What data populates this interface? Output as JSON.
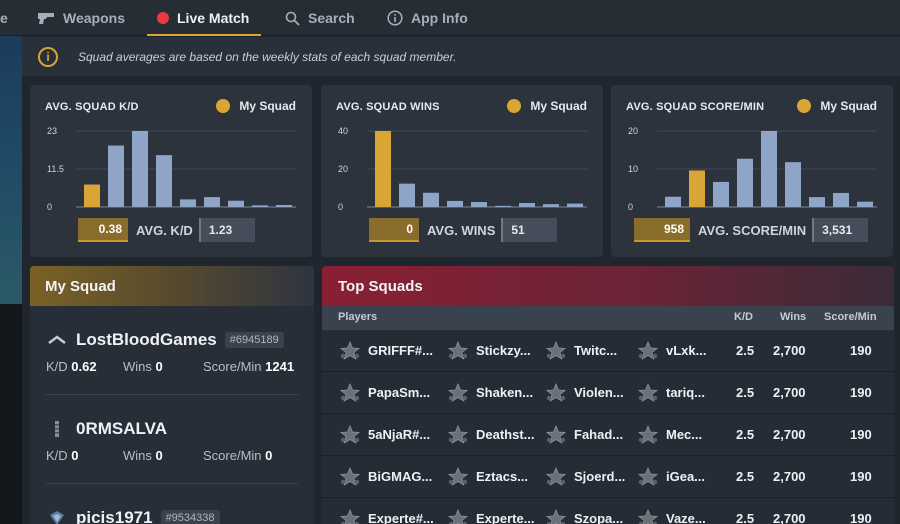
{
  "nav": {
    "cut_label": "e",
    "items": [
      {
        "label": "Weapons",
        "icon": "gun-icon",
        "active": false
      },
      {
        "label": "Live Match",
        "icon": "live-dot-icon",
        "active": true
      },
      {
        "label": "Search",
        "icon": "search-icon",
        "active": false
      },
      {
        "label": "App Info",
        "icon": "info-icon",
        "active": false
      }
    ]
  },
  "info_bar": {
    "icon": "info-icon",
    "text": "Squad averages are based on the weekly stats of each squad member."
  },
  "colors": {
    "accent": "#d9a636",
    "live": "#ea3a43",
    "bar": "#8ea5c8",
    "card": "#2c333d"
  },
  "stat_cards": [
    {
      "title": "AVG. SQUAD K/D",
      "legend": "My Squad",
      "my_value": "0.38",
      "avg_label": "AVG. K/D",
      "avg_value": "1.23"
    },
    {
      "title": "AVG. SQUAD WINS",
      "legend": "My Squad",
      "my_value": "0",
      "avg_label": "AVG. WINS",
      "avg_value": "51"
    },
    {
      "title": "AVG. SQUAD SCORE/MIN",
      "legend": "My Squad",
      "my_value": "958",
      "avg_label": "AVG. SCORE/MIN",
      "avg_value": "3,531"
    }
  ],
  "chart_data": [
    {
      "type": "bar",
      "title": "AVG. SQUAD K/D",
      "yticks": [
        "0",
        "11.5",
        "23"
      ],
      "ylim": [
        0,
        23
      ],
      "values": [
        6.8,
        18.6,
        23,
        15.7,
        2.3,
        3.0,
        1.9,
        0.5,
        0.6
      ],
      "highlight_index": 0,
      "legend": "My Squad"
    },
    {
      "type": "bar",
      "title": "AVG. SQUAD WINS",
      "yticks": [
        "0",
        "20",
        "40"
      ],
      "ylim": [
        0,
        40
      ],
      "values": [
        40,
        12.3,
        7.5,
        3.2,
        2.6,
        0.6,
        2.1,
        1.5,
        1.8
      ],
      "highlight_index": 0,
      "legend": "My Squad"
    },
    {
      "type": "bar",
      "title": "AVG. SQUAD SCORE/MIN",
      "yticks": [
        "0",
        "10",
        "20"
      ],
      "ylim": [
        0,
        20
      ],
      "values": [
        2.7,
        9.6,
        6.6,
        12.7,
        20,
        11.8,
        2.6,
        3.7,
        1.4
      ],
      "highlight_index": 1,
      "legend": "My Squad"
    }
  ],
  "my_squad": {
    "title": "My Squad",
    "members": [
      {
        "name": "LostBloodGames",
        "tag": "#6945189",
        "rank_icon": "rank-chevron-icon",
        "kd_label": "K/D",
        "kd": "0.62",
        "wins_label": "Wins",
        "wins": "0",
        "spm_label": "Score/Min",
        "spm": "1241"
      },
      {
        "name": "0RMSALVA",
        "tag": "",
        "rank_icon": "rank-bar-icon",
        "kd_label": "K/D",
        "kd": "0",
        "wins_label": "Wins",
        "wins": "0",
        "spm_label": "Score/Min",
        "spm": "0"
      },
      {
        "name": "picis1971",
        "tag": "#9534338",
        "rank_icon": "rank-shield-icon",
        "kd_label": "",
        "kd": "",
        "wins_label": "",
        "wins": "",
        "spm_label": "",
        "spm": ""
      }
    ]
  },
  "top_squads": {
    "title": "Top Squads",
    "columns": {
      "players": "Players",
      "kd": "K/D",
      "wins": "Wins",
      "spm": "Score/Min"
    },
    "rows": [
      {
        "players": [
          "GRIFFF#...",
          "Stickzy...",
          "Twitc...",
          "vLxk..."
        ],
        "kd": "2.5",
        "wins": "2,700",
        "spm": "190"
      },
      {
        "players": [
          "PapaSm...",
          "Shaken...",
          "Violen...",
          "tariq..."
        ],
        "kd": "2.5",
        "wins": "2,700",
        "spm": "190"
      },
      {
        "players": [
          "5aNjaR#...",
          "Deathst...",
          "Fahad...",
          "Mec..."
        ],
        "kd": "2.5",
        "wins": "2,700",
        "spm": "190"
      },
      {
        "players": [
          "BiGMAG...",
          "Eztacs...",
          "Sjoerd...",
          "iGea..."
        ],
        "kd": "2.5",
        "wins": "2,700",
        "spm": "190"
      },
      {
        "players": [
          "Experte#...",
          "Experte...",
          "Szopa...",
          "Vaze..."
        ],
        "kd": "2.5",
        "wins": "2,700",
        "spm": "190"
      }
    ]
  }
}
